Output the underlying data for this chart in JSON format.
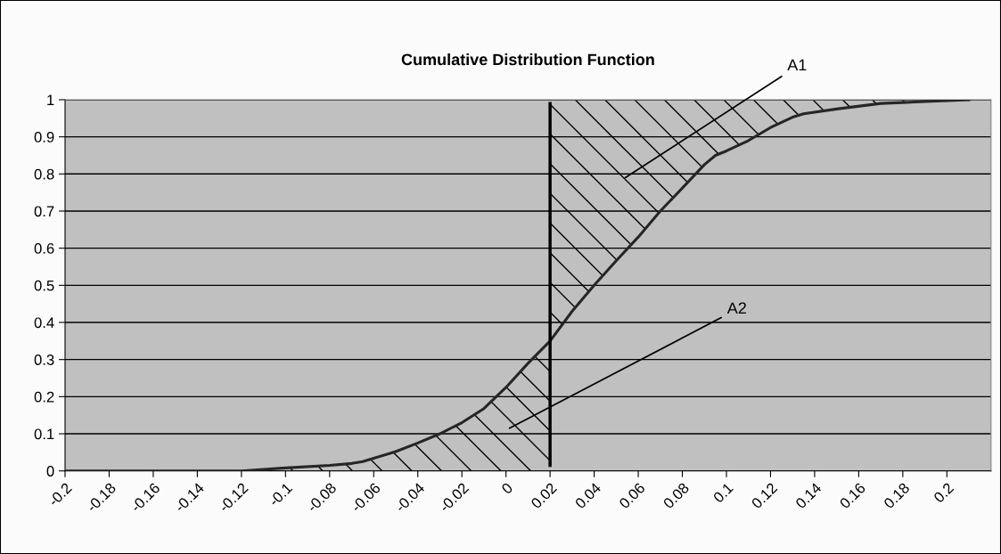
{
  "chart_data": {
    "type": "line",
    "title": "Cumulative Distribution Function",
    "series": [
      {
        "color": "#262626",
        "x": [
          -0.2,
          -0.12,
          -0.1,
          -0.08,
          -0.07,
          -0.065,
          -0.05,
          -0.04,
          -0.03,
          -0.02,
          -0.01,
          0,
          0.01,
          0.02,
          0.03,
          0.04,
          0.05,
          0.06,
          0.07,
          0.08,
          0.09,
          0.095,
          0.1,
          0.11,
          0.12,
          0.13,
          0.135,
          0.15,
          0.17,
          0.19,
          0.21
        ],
        "values": [
          0,
          0,
          0.008,
          0.015,
          0.02,
          0.025,
          0.052,
          0.075,
          0.1,
          0.13,
          0.168,
          0.225,
          0.29,
          0.35,
          0.43,
          0.5,
          0.566,
          0.63,
          0.7,
          0.762,
          0.825,
          0.85,
          0.862,
          0.89,
          0.925,
          0.953,
          0.962,
          0.975,
          0.99,
          0.995,
          1.0
        ]
      }
    ],
    "xlim": [
      -0.2,
      0.22
    ],
    "xticks": [
      -0.2,
      -0.18,
      -0.16,
      -0.14,
      -0.12,
      -0.1,
      -0.08,
      -0.06,
      -0.04,
      -0.02,
      0,
      0.02,
      0.04,
      0.06,
      0.08,
      0.1,
      0.12,
      0.14,
      0.16,
      0.18,
      0.2
    ],
    "ylim": [
      0,
      1
    ],
    "yticks": [
      0,
      0.1,
      0.2,
      0.3,
      0.4,
      0.5,
      0.6,
      0.7,
      0.8,
      0.9,
      1
    ],
    "grid": "y",
    "legend": false,
    "marker": "none",
    "line_style": "solid",
    "ref_lines": [
      {
        "axis": "x",
        "value": 0.02,
        "color": "#000000"
      }
    ],
    "annotations": [
      "A1",
      "A2"
    ]
  }
}
